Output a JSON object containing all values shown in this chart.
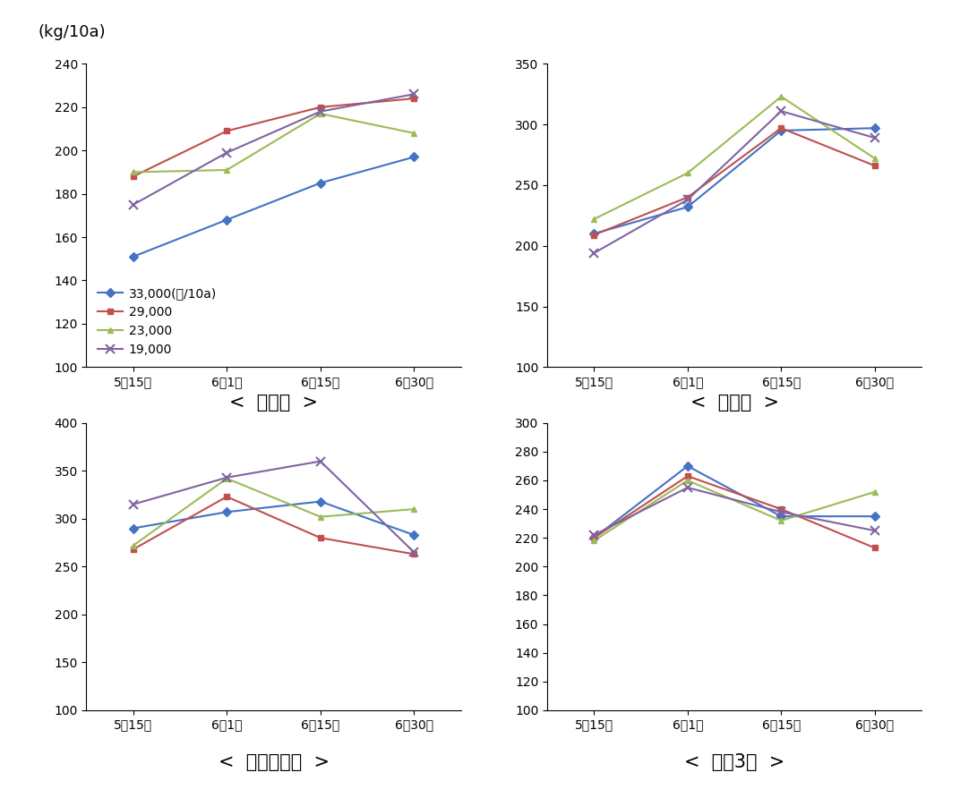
{
  "ylabel": "(kg/10a)",
  "x_labels": [
    "5월15일",
    "6월1일",
    "6월15일",
    "6월30일"
  ],
  "legend_labels": [
    "33,000(본/10a)",
    "29,000",
    "23,000",
    "19,000"
  ],
  "line_colors": [
    "#4472C4",
    "#C0504D",
    "#9BBB59",
    "#8064A2"
  ],
  "markers": [
    "D",
    "s",
    "^",
    "x"
  ],
  "subplots": [
    {
      "title": "<  새올콩  >",
      "ylim": [
        100,
        240
      ],
      "yticks": [
        100,
        120,
        140,
        160,
        180,
        200,
        220,
        240
      ],
      "data": [
        [
          151,
          168,
          185,
          197
        ],
        [
          188,
          209,
          220,
          224
        ],
        [
          190,
          191,
          217,
          208
        ],
        [
          175,
          199,
          218,
          226
        ]
      ],
      "show_legend": true
    },
    {
      "title": "<  태광콩  >",
      "ylim": [
        100,
        350
      ],
      "yticks": [
        100,
        150,
        200,
        250,
        300,
        350
      ],
      "data": [
        [
          210,
          232,
          295,
          297
        ],
        [
          209,
          240,
          297,
          266
        ],
        [
          222,
          260,
          323,
          272
        ],
        [
          194,
          238,
          311,
          289
        ]
      ],
      "show_legend": false
    },
    {
      "title": "<  풍산나물콩  >",
      "ylim": [
        100,
        400
      ],
      "yticks": [
        100,
        150,
        200,
        250,
        300,
        350,
        400
      ],
      "data": [
        [
          290,
          307,
          318,
          283
        ],
        [
          268,
          323,
          280,
          263
        ],
        [
          272,
          342,
          302,
          310
        ],
        [
          315,
          343,
          360,
          265
        ]
      ],
      "show_legend": false
    },
    {
      "title": "<  청자3호  >",
      "ylim": [
        100,
        300
      ],
      "yticks": [
        100,
        120,
        140,
        160,
        180,
        200,
        220,
        240,
        260,
        280,
        300
      ],
      "data": [
        [
          220,
          270,
          235,
          235
        ],
        [
          220,
          263,
          240,
          213
        ],
        [
          218,
          260,
          232,
          252
        ],
        [
          222,
          255,
          238,
          225
        ]
      ],
      "show_legend": false
    }
  ],
  "background_color": "#FFFFFF",
  "font_size_title": 15,
  "font_size_tick": 10,
  "font_size_legend": 10,
  "font_size_ylabel": 13
}
